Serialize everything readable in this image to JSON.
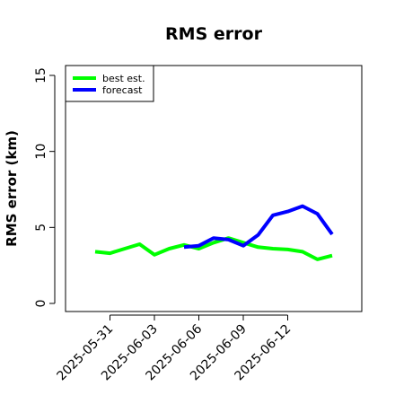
{
  "chart_data": {
    "type": "line",
    "title": "RMS error",
    "xlabel": "",
    "ylabel": "RMS error (km)",
    "ylim": [
      0,
      15
    ],
    "yticks": [
      0,
      5,
      10,
      15
    ],
    "xlim": [
      "2025-05-28",
      "2025-06-17"
    ],
    "xticks": [
      "2025-05-31",
      "2025-06-03",
      "2025-06-06",
      "2025-06-09",
      "2025-06-12"
    ],
    "grid": false,
    "legend_position": "top-left",
    "series": [
      {
        "name": "best est.",
        "color": "#00ff00",
        "x": [
          "2025-05-30",
          "2025-05-31",
          "2025-06-01",
          "2025-06-02",
          "2025-06-03",
          "2025-06-04",
          "2025-06-05",
          "2025-06-06",
          "2025-06-07",
          "2025-06-08",
          "2025-06-09",
          "2025-06-10",
          "2025-06-11",
          "2025-06-12",
          "2025-06-13",
          "2025-06-14",
          "2025-06-15"
        ],
        "values": [
          3.4,
          3.3,
          3.6,
          3.9,
          3.2,
          3.6,
          3.85,
          3.6,
          4.0,
          4.3,
          4.0,
          3.7,
          3.6,
          3.55,
          3.4,
          2.9,
          3.15
        ]
      },
      {
        "name": "forecast",
        "color": "#0000ff",
        "x": [
          "2025-06-05",
          "2025-06-06",
          "2025-06-07",
          "2025-06-08",
          "2025-06-09",
          "2025-06-10",
          "2025-06-11",
          "2025-06-12",
          "2025-06-13",
          "2025-06-14",
          "2025-06-15"
        ],
        "values": [
          3.7,
          3.8,
          4.3,
          4.2,
          3.8,
          4.5,
          5.8,
          6.05,
          6.4,
          5.9,
          4.55
        ]
      }
    ]
  }
}
